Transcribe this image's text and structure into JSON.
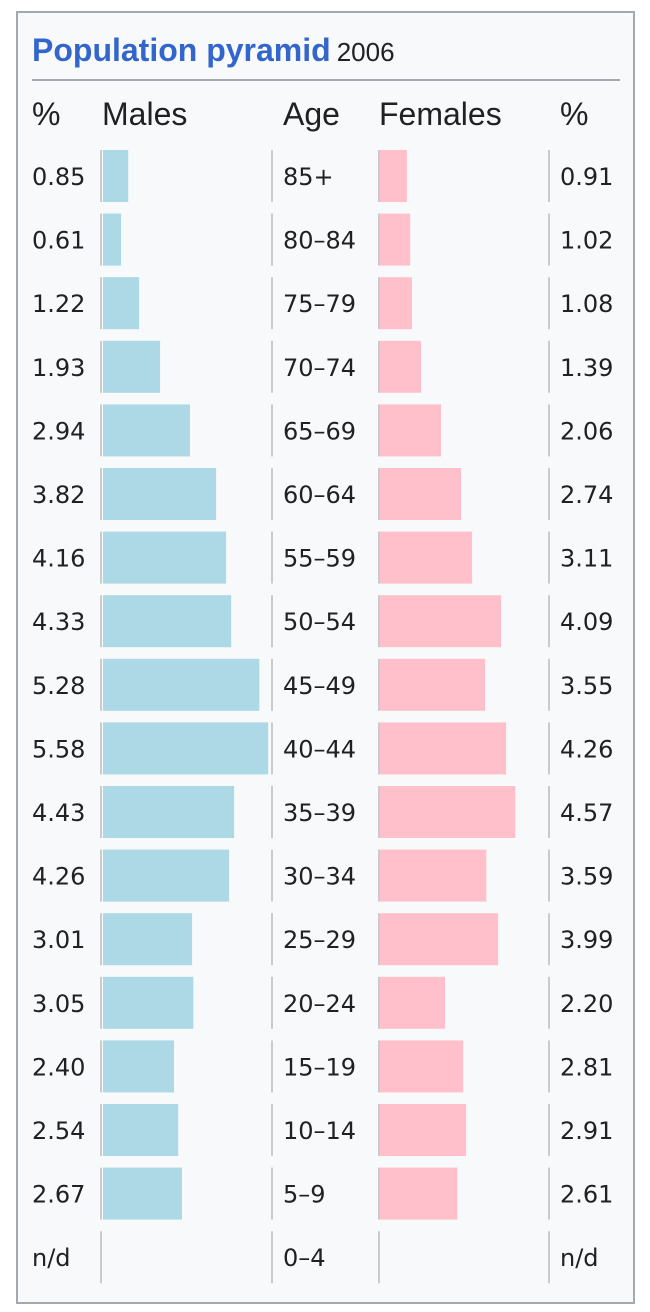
{
  "title": "Population pyramid",
  "year": "2006",
  "headers": {
    "pct_left": "%",
    "males": "Males",
    "age": "Age",
    "females": "Females",
    "pct_right": "%"
  },
  "colors": {
    "male": "#add8e6",
    "female": "#ffc0cb",
    "title": "#3366cc"
  },
  "chart_data": {
    "type": "bar",
    "categories": [
      "85+",
      "80–84",
      "75–79",
      "70–74",
      "65–69",
      "60–64",
      "55–59",
      "50–54",
      "45–49",
      "40–44",
      "35–39",
      "30–34",
      "25–29",
      "20–24",
      "15–19",
      "10–14",
      "5–9",
      "0–4"
    ],
    "series": [
      {
        "name": "Males",
        "values": [
          0.85,
          0.61,
          1.22,
          1.93,
          2.94,
          3.82,
          4.16,
          4.33,
          5.28,
          5.58,
          4.43,
          4.26,
          3.01,
          3.05,
          2.4,
          2.54,
          2.67,
          null
        ],
        "labels": [
          "0.85",
          "0.61",
          "1.22",
          "1.93",
          "2.94",
          "3.82",
          "4.16",
          "4.33",
          "5.28",
          "5.58",
          "4.43",
          "4.26",
          "3.01",
          "3.05",
          "2.40",
          "2.54",
          "2.67",
          "n/d"
        ]
      },
      {
        "name": "Females",
        "values": [
          0.91,
          1.02,
          1.08,
          1.39,
          2.06,
          2.74,
          3.11,
          4.09,
          3.55,
          4.26,
          4.57,
          3.59,
          3.99,
          2.2,
          2.81,
          2.91,
          2.61,
          null
        ],
        "labels": [
          "0.91",
          "1.02",
          "1.08",
          "1.39",
          "2.06",
          "2.74",
          "3.11",
          "4.09",
          "3.55",
          "4.26",
          "4.57",
          "3.59",
          "3.99",
          "2.20",
          "2.81",
          "2.91",
          "2.61",
          "n/d"
        ]
      }
    ],
    "xlabel": "",
    "ylabel": "",
    "grid": false
  }
}
